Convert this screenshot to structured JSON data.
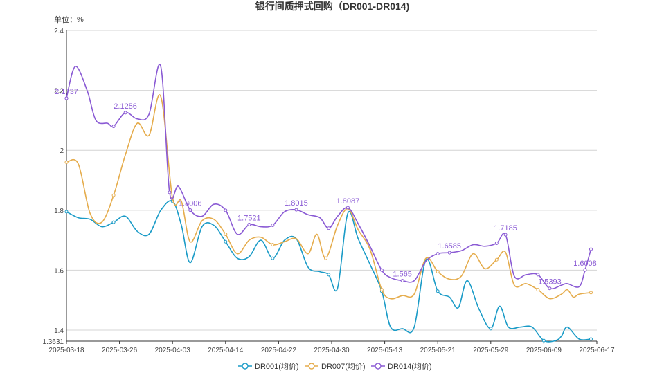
{
  "chart_data": {
    "type": "line",
    "title": "银行间质押式回购（DR001-DR014)",
    "unit_label": "单位：%",
    "ylim": [
      1.3631,
      2.4
    ],
    "yticks": [
      1.3631,
      1.4,
      1.6,
      1.8,
      2,
      2.2,
      2.4
    ],
    "ytick_labels": [
      "1.3631",
      "1.4",
      "1.6",
      "1.8",
      "2",
      "2.2",
      "2.4"
    ],
    "x_tick_labels": [
      "2025-03-18",
      "2025-03-26",
      "2025-04-03",
      "2025-04-14",
      "2025-04-22",
      "2025-04-30",
      "2025-05-13",
      "2025-05-21",
      "2025-05-29",
      "2025-06-09",
      "2025-06-17"
    ],
    "grid": true,
    "legend_position": "bottom",
    "series": [
      {
        "name": "DR001(均价)",
        "color": "#1a9bc7",
        "points": [
          [
            0,
            1.795
          ],
          [
            0.4,
            1.775
          ],
          [
            0.8,
            1.77
          ],
          [
            1.2,
            1.745
          ],
          [
            1.6,
            1.76
          ],
          [
            2,
            1.78
          ],
          [
            2.4,
            1.73
          ],
          [
            2.8,
            1.72
          ],
          [
            3.2,
            1.8
          ],
          [
            3.6,
            1.83
          ],
          [
            3.9,
            1.75
          ],
          [
            4.2,
            1.625
          ],
          [
            4.6,
            1.745
          ],
          [
            5,
            1.75
          ],
          [
            5.4,
            1.695
          ],
          [
            5.8,
            1.64
          ],
          [
            6.2,
            1.645
          ],
          [
            6.6,
            1.7
          ],
          [
            7,
            1.64
          ],
          [
            7.4,
            1.7
          ],
          [
            7.8,
            1.705
          ],
          [
            8.2,
            1.61
          ],
          [
            8.6,
            1.595
          ],
          [
            8.9,
            1.585
          ],
          [
            9.2,
            1.54
          ],
          [
            9.55,
            1.79
          ],
          [
            9.9,
            1.705
          ],
          [
            10.3,
            1.62
          ],
          [
            10.7,
            1.53
          ],
          [
            11,
            1.41
          ],
          [
            11.4,
            1.405
          ],
          [
            11.8,
            1.41
          ],
          [
            12.2,
            1.635
          ],
          [
            12.6,
            1.53
          ],
          [
            13,
            1.51
          ],
          [
            13.3,
            1.475
          ],
          [
            13.6,
            1.565
          ],
          [
            14,
            1.47
          ],
          [
            14.4,
            1.405
          ],
          [
            14.7,
            1.48
          ],
          [
            15,
            1.41
          ],
          [
            15.4,
            1.41
          ],
          [
            15.8,
            1.41
          ],
          [
            16.2,
            1.365
          ],
          [
            16.6,
            1.365
          ],
          [
            16.8,
            1.38
          ],
          [
            17,
            1.41
          ],
          [
            17.4,
            1.37
          ],
          [
            17.8,
            1.37
          ]
        ],
        "labels": []
      },
      {
        "name": "DR007(均价)",
        "color": "#e5ac4c",
        "points": [
          [
            0,
            1.96
          ],
          [
            0.4,
            1.955
          ],
          [
            0.8,
            1.79
          ],
          [
            1.2,
            1.76
          ],
          [
            1.6,
            1.85
          ],
          [
            2,
            1.985
          ],
          [
            2.4,
            2.09
          ],
          [
            2.8,
            2.05
          ],
          [
            3.2,
            2.18
          ],
          [
            3.6,
            1.84
          ],
          [
            3.9,
            1.83
          ],
          [
            4.2,
            1.695
          ],
          [
            4.6,
            1.765
          ],
          [
            5,
            1.77
          ],
          [
            5.4,
            1.72
          ],
          [
            5.8,
            1.655
          ],
          [
            6.2,
            1.7
          ],
          [
            6.6,
            1.71
          ],
          [
            7,
            1.685
          ],
          [
            7.4,
            1.695
          ],
          [
            7.8,
            1.705
          ],
          [
            8.2,
            1.655
          ],
          [
            8.5,
            1.72
          ],
          [
            8.8,
            1.64
          ],
          [
            9.2,
            1.75
          ],
          [
            9.55,
            1.805
          ],
          [
            9.9,
            1.735
          ],
          [
            10.3,
            1.67
          ],
          [
            10.7,
            1.535
          ],
          [
            11,
            1.505
          ],
          [
            11.4,
            1.515
          ],
          [
            11.8,
            1.52
          ],
          [
            12.2,
            1.64
          ],
          [
            12.6,
            1.595
          ],
          [
            13,
            1.57
          ],
          [
            13.4,
            1.58
          ],
          [
            13.8,
            1.655
          ],
          [
            14.2,
            1.605
          ],
          [
            14.6,
            1.635
          ],
          [
            14.9,
            1.66
          ],
          [
            15.2,
            1.55
          ],
          [
            15.6,
            1.555
          ],
          [
            16,
            1.535
          ],
          [
            16.4,
            1.505
          ],
          [
            16.8,
            1.52
          ],
          [
            17,
            1.535
          ],
          [
            17.2,
            1.51
          ],
          [
            17.4,
            1.52
          ],
          [
            17.8,
            1.525
          ]
        ],
        "labels": []
      },
      {
        "name": "DR014(均价)",
        "color": "#8a5ad4",
        "points": [
          [
            0,
            2.1737
          ],
          [
            0.3,
            2.28
          ],
          [
            0.7,
            2.2
          ],
          [
            1,
            2.1
          ],
          [
            1.4,
            2.09
          ],
          [
            1.6,
            2.08
          ],
          [
            2,
            2.1256
          ],
          [
            2.4,
            2.105
          ],
          [
            2.8,
            2.12
          ],
          [
            3.2,
            2.28
          ],
          [
            3.5,
            1.86
          ],
          [
            3.8,
            1.88
          ],
          [
            4.2,
            1.8006
          ],
          [
            4.6,
            1.78
          ],
          [
            5,
            1.82
          ],
          [
            5.4,
            1.8
          ],
          [
            5.8,
            1.72
          ],
          [
            6.2,
            1.7521
          ],
          [
            6.6,
            1.745
          ],
          [
            7,
            1.75
          ],
          [
            7.4,
            1.795
          ],
          [
            7.8,
            1.8015
          ],
          [
            8.2,
            1.785
          ],
          [
            8.6,
            1.775
          ],
          [
            8.9,
            1.74
          ],
          [
            9.2,
            1.78
          ],
          [
            9.55,
            1.8087
          ],
          [
            9.9,
            1.755
          ],
          [
            10.3,
            1.68
          ],
          [
            10.7,
            1.6
          ],
          [
            11,
            1.575
          ],
          [
            11.4,
            1.565
          ],
          [
            11.8,
            1.565
          ],
          [
            12.2,
            1.63
          ],
          [
            12.6,
            1.655
          ],
          [
            13,
            1.6585
          ],
          [
            13.4,
            1.665
          ],
          [
            13.8,
            1.685
          ],
          [
            14.2,
            1.68
          ],
          [
            14.6,
            1.69
          ],
          [
            14.9,
            1.7185
          ],
          [
            15.2,
            1.58
          ],
          [
            15.6,
            1.585
          ],
          [
            16,
            1.585
          ],
          [
            16.4,
            1.5393
          ],
          [
            16.8,
            1.55
          ],
          [
            17,
            1.555
          ],
          [
            17.4,
            1.545
          ],
          [
            17.6,
            1.6008
          ],
          [
            17.8,
            1.67
          ]
        ],
        "labels": [
          [
            0,
            2.1737,
            "2.1737"
          ],
          [
            2,
            2.1256,
            "2.1256"
          ],
          [
            4.2,
            1.8006,
            "1.8006"
          ],
          [
            6.2,
            1.7521,
            "1.7521"
          ],
          [
            7.8,
            1.8015,
            "1.8015"
          ],
          [
            9.55,
            1.8087,
            "1.8087"
          ],
          [
            11.4,
            1.565,
            "1.565"
          ],
          [
            13,
            1.6585,
            "1.6585"
          ],
          [
            14.9,
            1.7185,
            "1.7185"
          ],
          [
            16.4,
            1.5393,
            "1.5393"
          ],
          [
            17.6,
            1.6008,
            "1.6008"
          ]
        ]
      }
    ]
  }
}
